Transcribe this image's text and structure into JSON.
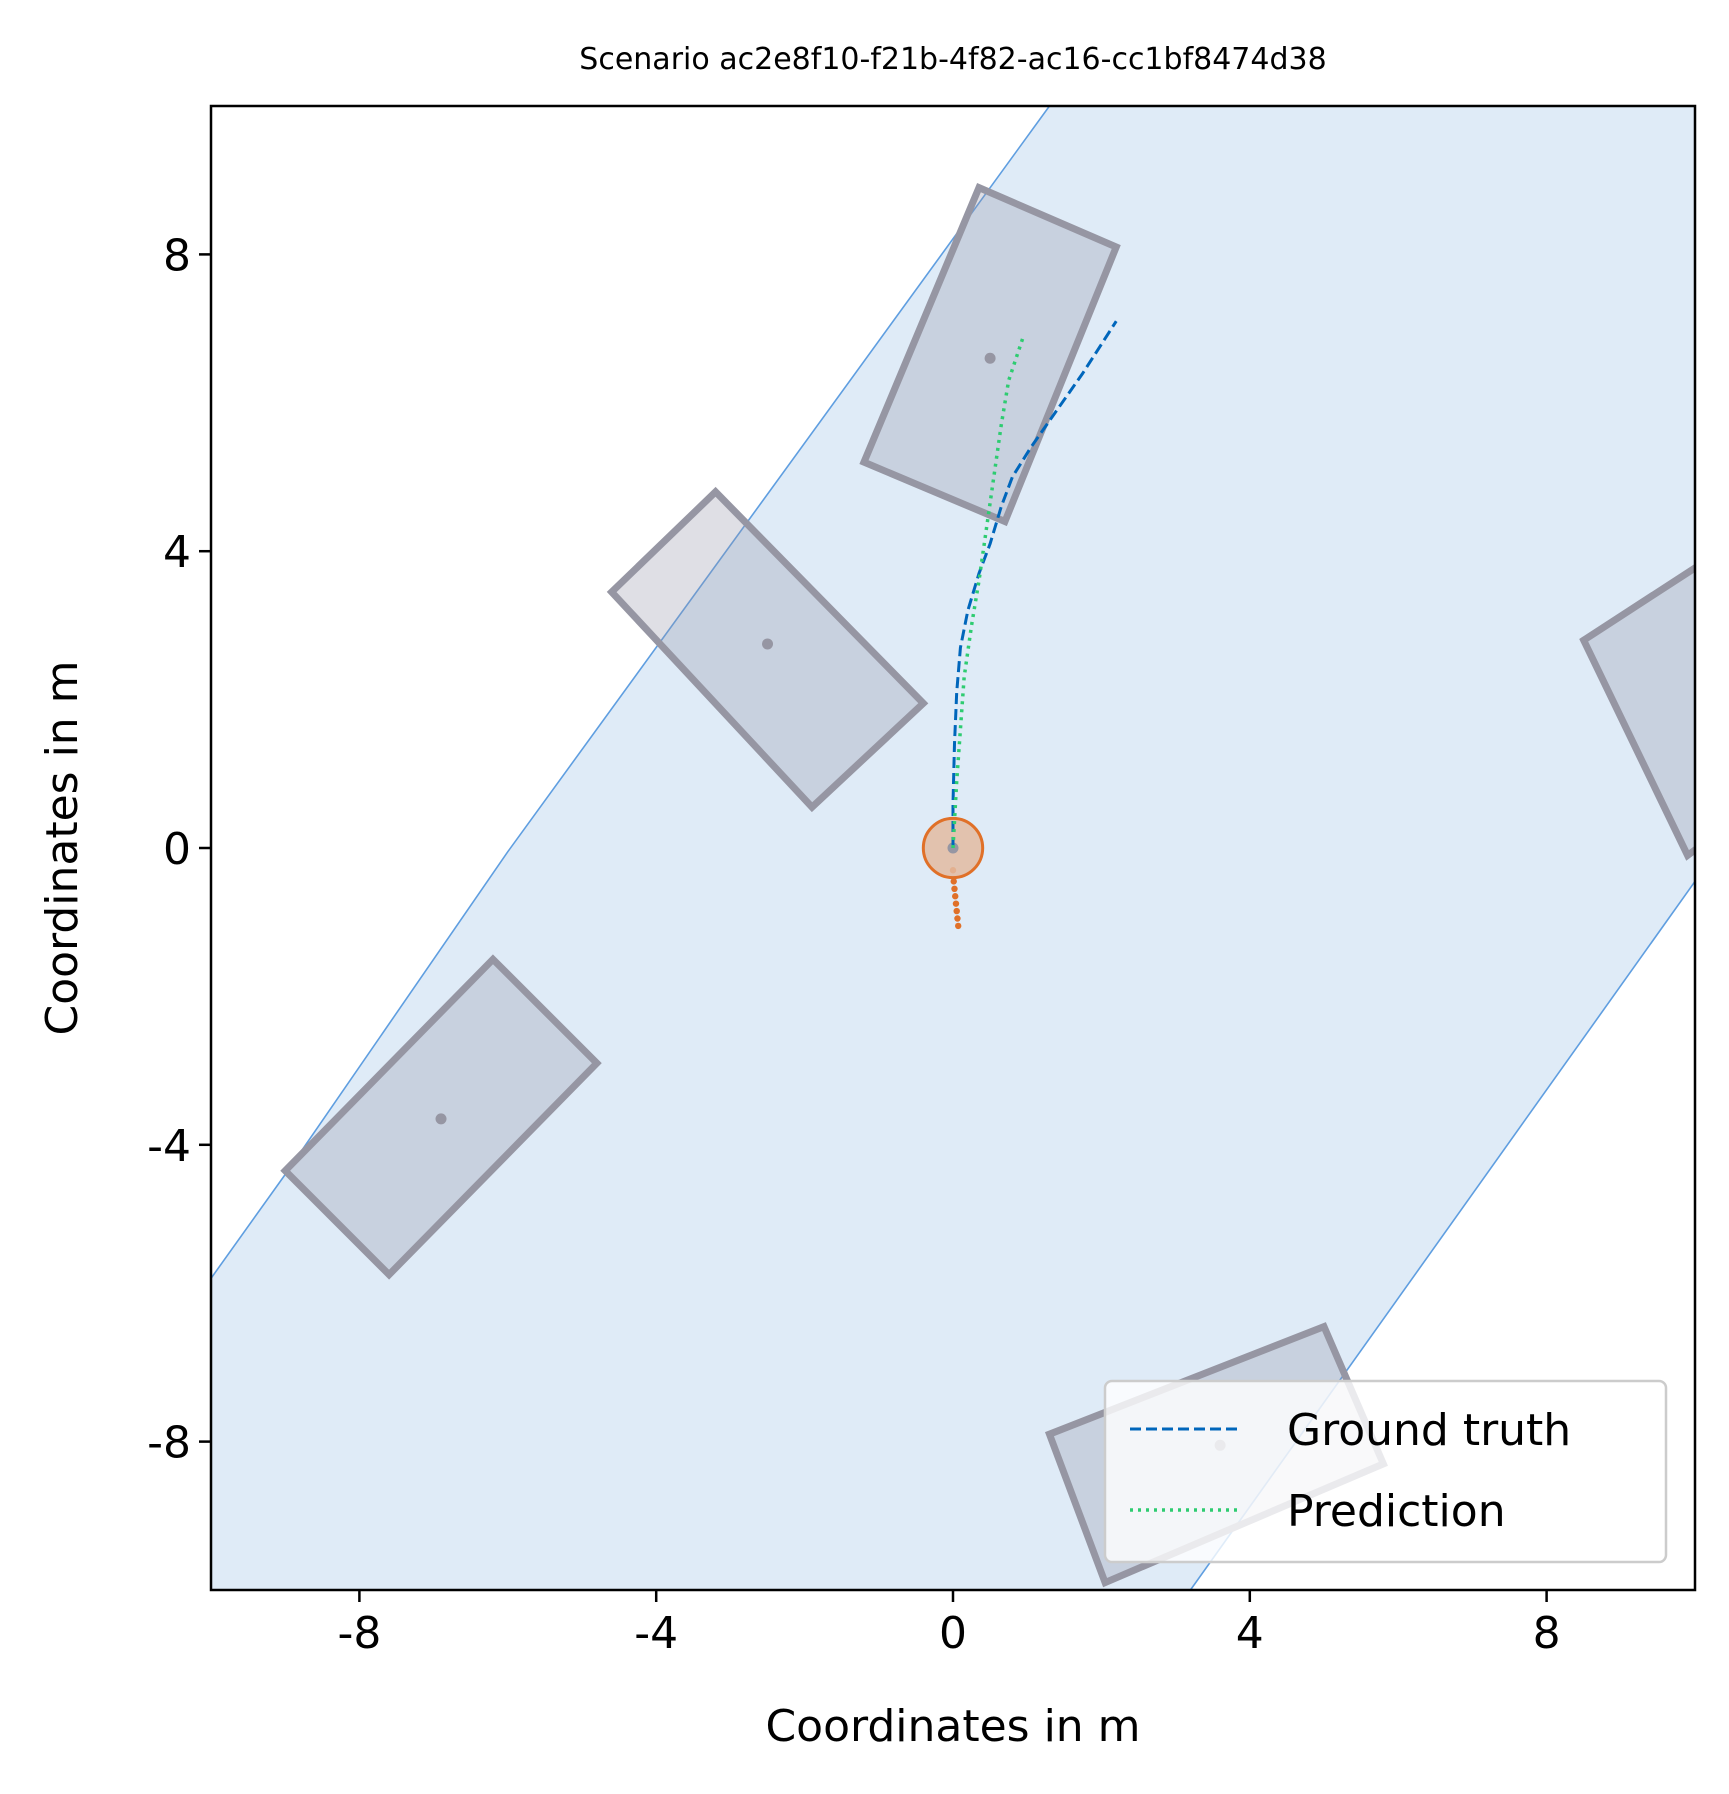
{
  "chart_data": {
    "type": "scatter",
    "title": "Scenario ac2e8f10-f21b-4f82-ac16-cc1bf8474d38",
    "xlabel": "Coordinates in m",
    "ylabel": "Coordinates in m",
    "xlim": [
      -10,
      10
    ],
    "ylim": [
      -10,
      10
    ],
    "xticks": [
      -8,
      -4,
      0,
      4,
      8
    ],
    "yticks": [
      -8,
      -4,
      0,
      4,
      8
    ],
    "xtick_labels": [
      "-8",
      "-4",
      "0",
      "4",
      "8"
    ],
    "ytick_labels": [
      "-8",
      "-4",
      "0",
      "4",
      "8"
    ],
    "grid": false,
    "legend_position": "lower-right",
    "legend": [
      {
        "label": "Ground truth",
        "style": "dashed",
        "color": "#0066bb"
      },
      {
        "label": "Prediction",
        "style": "dotted",
        "color": "#2ecc71"
      }
    ],
    "colors": {
      "lane_fill": "#dfebf7",
      "lane_edge": "#5f9ee0",
      "vehicle_edge": "#9696a3",
      "vehicle_fill": "#c5cfdc",
      "ego": "#e07028",
      "ego_fill": "#e3bba1"
    },
    "lane": {
      "left_boundary": [
        [
          -10,
          -5.8
        ],
        [
          -9,
          -4.4
        ],
        [
          -6,
          -0.05
        ],
        [
          1.3,
          10
        ]
      ],
      "right_boundary": [
        [
          3.2,
          -10
        ],
        [
          10,
          -0.45
        ]
      ]
    },
    "vehicles": [
      {
        "corners": [
          [
            0.35,
            8.9
          ],
          [
            2.2,
            8.1
          ],
          [
            0.7,
            4.4
          ],
          [
            -1.2,
            5.2
          ]
        ],
        "center": [
          0.5,
          6.6
        ]
      },
      {
        "corners": [
          [
            -3.2,
            4.8
          ],
          [
            -0.4,
            1.95
          ],
          [
            -1.9,
            0.55
          ],
          [
            -4.6,
            3.45
          ]
        ],
        "center": [
          -2.5,
          2.75
        ]
      },
      {
        "corners": [
          [
            -6.2,
            -1.5
          ],
          [
            -4.8,
            -2.9
          ],
          [
            -7.6,
            -5.75
          ],
          [
            -9.0,
            -4.35
          ]
        ],
        "center": [
          -6.9,
          -3.65
        ]
      },
      {
        "corners": [
          [
            8.5,
            2.8
          ],
          [
            10.5,
            4.1
          ],
          [
            11.8,
            1.3
          ],
          [
            9.9,
            -0.1
          ]
        ],
        "center": null
      },
      {
        "corners": [
          [
            1.3,
            -7.9
          ],
          [
            5.0,
            -6.45
          ],
          [
            5.8,
            -8.3
          ],
          [
            2.05,
            -9.9
          ]
        ],
        "center": [
          3.6,
          -8.05
        ]
      }
    ],
    "ego": {
      "position": [
        0.0,
        0.0
      ],
      "radius": 0.4
    },
    "history": [
      [
        0.0,
        -0.3
      ],
      [
        0.01,
        -0.45
      ],
      [
        0.02,
        -0.55
      ],
      [
        0.03,
        -0.65
      ],
      [
        0.04,
        -0.75
      ],
      [
        0.05,
        -0.85
      ],
      [
        0.06,
        -0.95
      ],
      [
        0.07,
        -1.05
      ]
    ],
    "series": [
      {
        "name": "Ground truth",
        "points": [
          [
            0.0,
            0.0
          ],
          [
            0.0,
            0.6
          ],
          [
            0.02,
            1.4
          ],
          [
            0.05,
            2.1
          ],
          [
            0.1,
            2.7
          ],
          [
            0.2,
            3.2
          ],
          [
            0.35,
            3.7
          ],
          [
            0.5,
            4.1
          ],
          [
            0.65,
            4.6
          ],
          [
            0.8,
            5.0
          ],
          [
            1.05,
            5.4
          ],
          [
            1.4,
            5.9
          ],
          [
            1.75,
            6.4
          ],
          [
            2.2,
            7.1
          ]
        ]
      },
      {
        "name": "Prediction",
        "points": [
          [
            0.0,
            0.0
          ],
          [
            0.05,
            0.9
          ],
          [
            0.1,
            1.6
          ],
          [
            0.15,
            2.3
          ],
          [
            0.25,
            3.0
          ],
          [
            0.35,
            3.6
          ],
          [
            0.45,
            4.3
          ],
          [
            0.55,
            5.0
          ],
          [
            0.65,
            5.7
          ],
          [
            0.75,
            6.3
          ],
          [
            0.95,
            6.9
          ]
        ]
      }
    ]
  }
}
